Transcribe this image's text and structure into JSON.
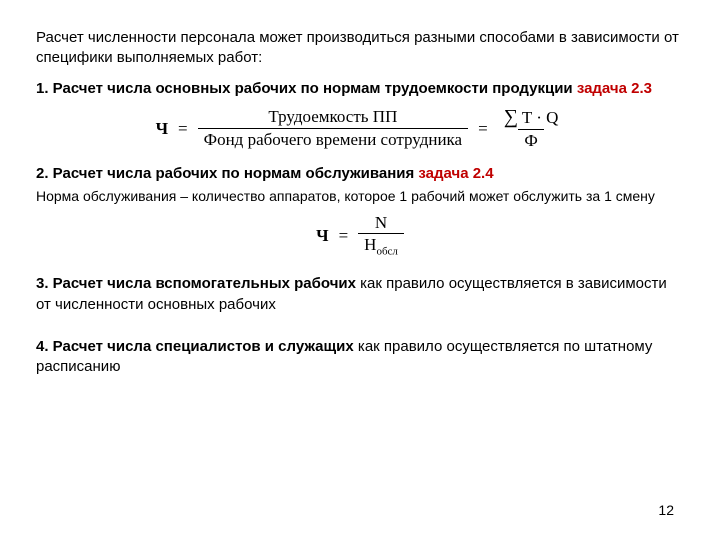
{
  "intro": "Расчет численности персонала может производиться разными способами в зависимости от специфики выполняемых работ:",
  "s1": {
    "heading_bold": "1. Расчет числа основных рабочих по нормам трудоемкости продукции ",
    "task": "задача 2.3",
    "formula": {
      "lhs": "Ч",
      "eq": "=",
      "frac1_num": "Трудоемкость ПП",
      "frac1_den": "Фонд рабочего времени сотрудника",
      "frac2_num_sigma": "∑",
      "frac2_num_expr": "T · Q",
      "frac2_den": "Ф"
    }
  },
  "s2": {
    "heading_bold": "2. Расчет числа рабочих по нормам обслуживания ",
    "task": "задача 2.4",
    "note": "Норма обслуживания – количество аппаратов, которое 1 рабочий может обслужить за 1 смену",
    "formula": {
      "lhs": "Ч",
      "eq": "=",
      "num": "N",
      "den_base": "Н",
      "den_sub": "обсл"
    }
  },
  "s3": {
    "heading_bold": "3. Расчет числа вспомогательных рабочих ",
    "heading_rest": "как правило осуществляется в зависимости от численности основных рабочих"
  },
  "s4": {
    "heading_bold": "4. Расчет числа специалистов и служащих ",
    "heading_rest": "как правило осуществляется по штатному расписанию"
  },
  "page_number": "12",
  "colors": {
    "text": "#000000",
    "accent": "#c00000",
    "background": "#ffffff"
  },
  "typography": {
    "body_font": "Arial",
    "body_size_pt": 11,
    "formula_font": "Times New Roman",
    "formula_size_pt": 13
  }
}
